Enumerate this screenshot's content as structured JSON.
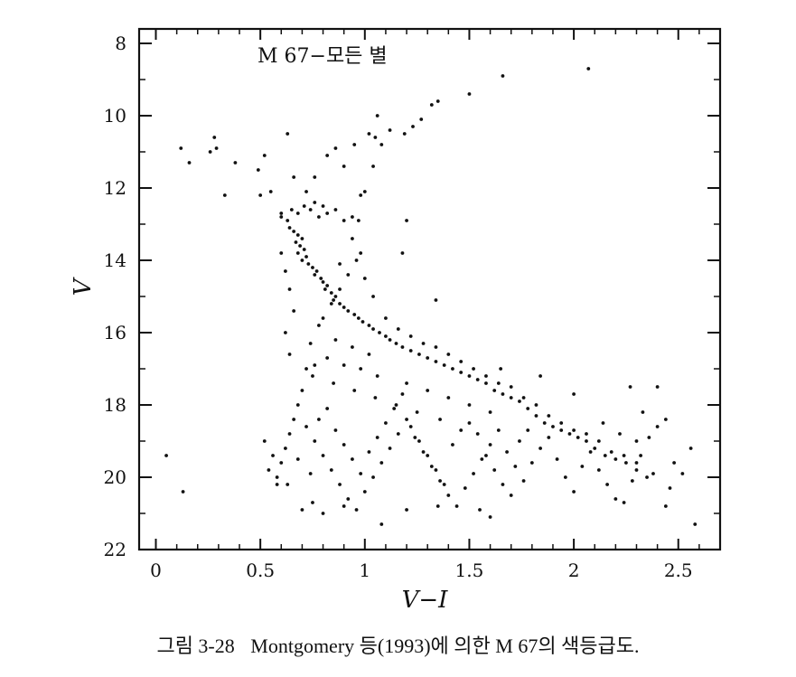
{
  "chart_data": {
    "type": "scatter",
    "title": "M 67−모든 별",
    "xlabel": "V−I",
    "ylabel": "V",
    "xlim": [
      -0.08,
      2.7
    ],
    "ylim": [
      22,
      7.6
    ],
    "y_inverted": true,
    "grid": false,
    "x_ticks": [
      0,
      0.5,
      1,
      1.5,
      2,
      2.5
    ],
    "x_tick_labels": [
      "0",
      "0.5",
      "1",
      "1.5",
      "2",
      "2.5"
    ],
    "y_ticks": [
      8,
      10,
      12,
      14,
      16,
      18,
      20,
      22
    ],
    "y_tick_labels": [
      "8",
      "10",
      "12",
      "14",
      "16",
      "18",
      "20",
      "22"
    ],
    "series": [
      {
        "points": [
          [
            0.05,
            19.4
          ],
          [
            0.13,
            20.4
          ],
          [
            0.12,
            10.9
          ],
          [
            0.16,
            11.3
          ],
          [
            0.26,
            11.0
          ],
          [
            0.28,
            10.6
          ],
          [
            0.29,
            10.9
          ],
          [
            0.33,
            12.2
          ],
          [
            0.38,
            11.3
          ],
          [
            0.49,
            11.5
          ],
          [
            0.5,
            12.2
          ],
          [
            0.52,
            11.1
          ],
          [
            0.55,
            12.1
          ],
          [
            0.6,
            12.7
          ],
          [
            0.63,
            10.5
          ],
          [
            0.66,
            11.7
          ],
          [
            0.72,
            12.1
          ],
          [
            0.76,
            11.7
          ],
          [
            0.82,
            11.1
          ],
          [
            0.86,
            10.9
          ],
          [
            0.9,
            11.4
          ],
          [
            0.95,
            10.8
          ],
          [
            0.98,
            12.2
          ],
          [
            1.0,
            12.1
          ],
          [
            1.02,
            10.5
          ],
          [
            1.05,
            10.6
          ],
          [
            1.06,
            10.0
          ],
          [
            1.08,
            10.8
          ],
          [
            1.04,
            11.4
          ],
          [
            1.12,
            10.4
          ],
          [
            1.19,
            10.5
          ],
          [
            1.23,
            10.3
          ],
          [
            1.27,
            10.1
          ],
          [
            1.32,
            9.7
          ],
          [
            1.35,
            9.6
          ],
          [
            1.5,
            9.4
          ],
          [
            1.66,
            8.9
          ],
          [
            2.07,
            8.7
          ],
          [
            1.2,
            12.9
          ],
          [
            1.18,
            13.8
          ],
          [
            1.34,
            15.1
          ],
          [
            0.65,
            12.6
          ],
          [
            0.68,
            12.7
          ],
          [
            0.71,
            12.5
          ],
          [
            0.74,
            12.6
          ],
          [
            0.63,
            12.9
          ],
          [
            0.6,
            12.8
          ],
          [
            0.78,
            12.8
          ],
          [
            0.82,
            12.7
          ],
          [
            0.86,
            12.6
          ],
          [
            0.9,
            12.9
          ],
          [
            0.94,
            12.8
          ],
          [
            0.97,
            12.9
          ],
          [
            0.76,
            12.4
          ],
          [
            0.8,
            12.5
          ],
          [
            0.64,
            13.1
          ],
          [
            0.66,
            13.2
          ],
          [
            0.68,
            13.3
          ],
          [
            0.7,
            13.4
          ],
          [
            0.67,
            13.5
          ],
          [
            0.69,
            13.6
          ],
          [
            0.71,
            13.7
          ],
          [
            0.68,
            13.8
          ],
          [
            0.72,
            13.9
          ],
          [
            0.7,
            14.0
          ],
          [
            0.73,
            14.1
          ],
          [
            0.75,
            14.2
          ],
          [
            0.77,
            14.3
          ],
          [
            0.76,
            14.4
          ],
          [
            0.79,
            14.5
          ],
          [
            0.8,
            14.6
          ],
          [
            0.82,
            14.7
          ],
          [
            0.81,
            14.8
          ],
          [
            0.84,
            14.9
          ],
          [
            0.86,
            15.0
          ],
          [
            0.85,
            15.1
          ],
          [
            0.88,
            15.2
          ],
          [
            0.9,
            15.3
          ],
          [
            0.92,
            15.4
          ],
          [
            0.95,
            15.5
          ],
          [
            0.97,
            15.6
          ],
          [
            0.99,
            15.7
          ],
          [
            1.02,
            15.8
          ],
          [
            1.04,
            15.9
          ],
          [
            1.07,
            16.0
          ],
          [
            1.1,
            16.1
          ],
          [
            1.12,
            16.2
          ],
          [
            1.15,
            16.3
          ],
          [
            1.18,
            16.4
          ],
          [
            1.22,
            16.5
          ],
          [
            1.26,
            16.6
          ],
          [
            1.3,
            16.7
          ],
          [
            1.34,
            16.8
          ],
          [
            1.38,
            16.9
          ],
          [
            1.42,
            17.0
          ],
          [
            1.46,
            17.1
          ],
          [
            1.5,
            17.2
          ],
          [
            1.54,
            17.3
          ],
          [
            1.58,
            17.4
          ],
          [
            1.62,
            17.6
          ],
          [
            1.66,
            17.7
          ],
          [
            1.7,
            17.8
          ],
          [
            1.74,
            17.9
          ],
          [
            1.78,
            18.1
          ],
          [
            1.82,
            18.3
          ],
          [
            1.86,
            18.5
          ],
          [
            1.9,
            18.6
          ],
          [
            1.94,
            18.7
          ],
          [
            1.98,
            18.8
          ],
          [
            2.02,
            18.9
          ],
          [
            2.06,
            19.0
          ],
          [
            2.1,
            19.2
          ],
          [
            2.15,
            19.4
          ],
          [
            2.2,
            19.5
          ],
          [
            2.25,
            19.6
          ],
          [
            2.3,
            19.8
          ],
          [
            2.35,
            20.0
          ],
          [
            0.6,
            13.8
          ],
          [
            0.62,
            14.3
          ],
          [
            0.64,
            14.8
          ],
          [
            0.66,
            15.4
          ],
          [
            0.62,
            16.0
          ],
          [
            0.64,
            16.6
          ],
          [
            0.74,
            16.3
          ],
          [
            0.78,
            15.8
          ],
          [
            0.82,
            16.7
          ],
          [
            0.86,
            16.2
          ],
          [
            0.9,
            16.9
          ],
          [
            0.94,
            16.4
          ],
          [
            0.98,
            17.0
          ],
          [
            1.02,
            16.6
          ],
          [
            1.06,
            17.2
          ],
          [
            0.72,
            17.0
          ],
          [
            0.76,
            16.9
          ],
          [
            0.8,
            15.6
          ],
          [
            0.84,
            15.2
          ],
          [
            0.88,
            14.8
          ],
          [
            0.92,
            14.4
          ],
          [
            0.96,
            14.0
          ],
          [
            1.0,
            14.5
          ],
          [
            1.04,
            15.0
          ],
          [
            0.98,
            13.8
          ],
          [
            0.94,
            13.4
          ],
          [
            0.88,
            14.1
          ],
          [
            1.1,
            15.6
          ],
          [
            1.16,
            15.9
          ],
          [
            1.22,
            16.1
          ],
          [
            1.28,
            16.3
          ],
          [
            1.34,
            16.4
          ],
          [
            1.4,
            16.6
          ],
          [
            1.46,
            16.8
          ],
          [
            1.52,
            17.0
          ],
          [
            1.58,
            17.2
          ],
          [
            1.64,
            17.4
          ],
          [
            1.7,
            17.5
          ],
          [
            1.76,
            17.8
          ],
          [
            1.82,
            18.0
          ],
          [
            1.88,
            18.3
          ],
          [
            1.94,
            18.5
          ],
          [
            2.0,
            18.7
          ],
          [
            2.06,
            18.8
          ],
          [
            2.12,
            19.0
          ],
          [
            2.18,
            19.3
          ],
          [
            2.24,
            19.4
          ],
          [
            2.3,
            19.6
          ],
          [
            1.2,
            17.4
          ],
          [
            1.3,
            17.6
          ],
          [
            1.4,
            17.8
          ],
          [
            1.5,
            18.0
          ],
          [
            1.6,
            18.2
          ],
          [
            1.36,
            18.4
          ],
          [
            1.25,
            18.2
          ],
          [
            1.15,
            18.0
          ],
          [
            1.05,
            17.8
          ],
          [
            0.95,
            17.6
          ],
          [
            0.85,
            17.4
          ],
          [
            0.75,
            17.2
          ],
          [
            0.7,
            17.6
          ],
          [
            0.68,
            18.0
          ],
          [
            0.66,
            18.4
          ],
          [
            0.64,
            18.8
          ],
          [
            0.62,
            19.2
          ],
          [
            0.6,
            19.6
          ],
          [
            0.58,
            20.0
          ],
          [
            0.56,
            19.4
          ],
          [
            0.54,
            19.8
          ],
          [
            0.52,
            19.0
          ],
          [
            0.72,
            18.6
          ],
          [
            0.76,
            19.0
          ],
          [
            0.8,
            19.4
          ],
          [
            0.84,
            19.8
          ],
          [
            0.88,
            20.2
          ],
          [
            0.92,
            20.6
          ],
          [
            0.96,
            20.9
          ],
          [
            1.0,
            20.4
          ],
          [
            1.04,
            20.0
          ],
          [
            1.08,
            19.6
          ],
          [
            1.12,
            19.2
          ],
          [
            1.16,
            18.8
          ],
          [
            1.2,
            18.4
          ],
          [
            1.24,
            18.9
          ],
          [
            1.28,
            19.3
          ],
          [
            1.32,
            19.7
          ],
          [
            1.36,
            20.1
          ],
          [
            1.4,
            20.5
          ],
          [
            1.44,
            20.8
          ],
          [
            1.48,
            20.3
          ],
          [
            1.52,
            19.9
          ],
          [
            1.56,
            19.5
          ],
          [
            1.6,
            19.1
          ],
          [
            1.64,
            18.7
          ],
          [
            1.68,
            19.3
          ],
          [
            1.72,
            19.7
          ],
          [
            1.76,
            20.1
          ],
          [
            1.8,
            19.6
          ],
          [
            1.84,
            19.2
          ],
          [
            1.88,
            18.9
          ],
          [
            1.92,
            19.5
          ],
          [
            1.96,
            20.0
          ],
          [
            2.0,
            20.4
          ],
          [
            2.04,
            19.7
          ],
          [
            2.08,
            19.3
          ],
          [
            2.12,
            19.8
          ],
          [
            2.16,
            20.2
          ],
          [
            2.2,
            20.6
          ],
          [
            2.24,
            20.7
          ],
          [
            2.28,
            20.1
          ],
          [
            2.32,
            19.4
          ],
          [
            2.36,
            18.9
          ],
          [
            2.4,
            18.6
          ],
          [
            2.44,
            18.4
          ],
          [
            2.48,
            19.6
          ],
          [
            2.52,
            19.9
          ],
          [
            2.56,
            19.2
          ],
          [
            2.58,
            21.3
          ],
          [
            2.4,
            17.5
          ],
          [
            2.27,
            17.5
          ],
          [
            2.33,
            18.2
          ],
          [
            2.0,
            17.7
          ],
          [
            1.84,
            17.2
          ],
          [
            1.65,
            17.0
          ],
          [
            0.75,
            20.7
          ],
          [
            0.8,
            21.0
          ],
          [
            0.7,
            20.9
          ],
          [
            0.9,
            20.8
          ],
          [
            1.08,
            21.3
          ],
          [
            1.2,
            20.9
          ],
          [
            1.35,
            20.8
          ],
          [
            1.55,
            20.9
          ],
          [
            1.6,
            21.1
          ],
          [
            0.58,
            20.2
          ],
          [
            0.63,
            20.2
          ],
          [
            0.68,
            19.5
          ],
          [
            0.74,
            19.9
          ],
          [
            0.78,
            18.4
          ],
          [
            0.82,
            18.1
          ],
          [
            0.86,
            18.7
          ],
          [
            0.9,
            19.1
          ],
          [
            0.94,
            19.5
          ],
          [
            0.98,
            19.9
          ],
          [
            1.02,
            19.3
          ],
          [
            1.06,
            18.9
          ],
          [
            1.1,
            18.5
          ],
          [
            1.14,
            18.1
          ],
          [
            1.18,
            17.7
          ],
          [
            1.22,
            18.6
          ],
          [
            1.26,
            19.0
          ],
          [
            1.3,
            19.4
          ],
          [
            1.34,
            19.8
          ],
          [
            1.38,
            20.2
          ],
          [
            1.42,
            19.1
          ],
          [
            1.46,
            18.7
          ],
          [
            1.5,
            18.5
          ],
          [
            1.54,
            18.8
          ],
          [
            1.58,
            19.4
          ],
          [
            1.62,
            19.8
          ],
          [
            1.66,
            20.2
          ],
          [
            1.7,
            20.5
          ],
          [
            1.74,
            19.0
          ],
          [
            1.78,
            18.7
          ],
          [
            2.14,
            18.5
          ],
          [
            2.22,
            18.8
          ],
          [
            2.3,
            19.0
          ],
          [
            2.38,
            19.9
          ],
          [
            2.46,
            20.3
          ],
          [
            2.44,
            20.8
          ]
        ]
      }
    ]
  },
  "caption": {
    "figure_label": "그림 3-28",
    "text": "Montgomery 등(1993)에 의한 M 67의 색등급도."
  }
}
